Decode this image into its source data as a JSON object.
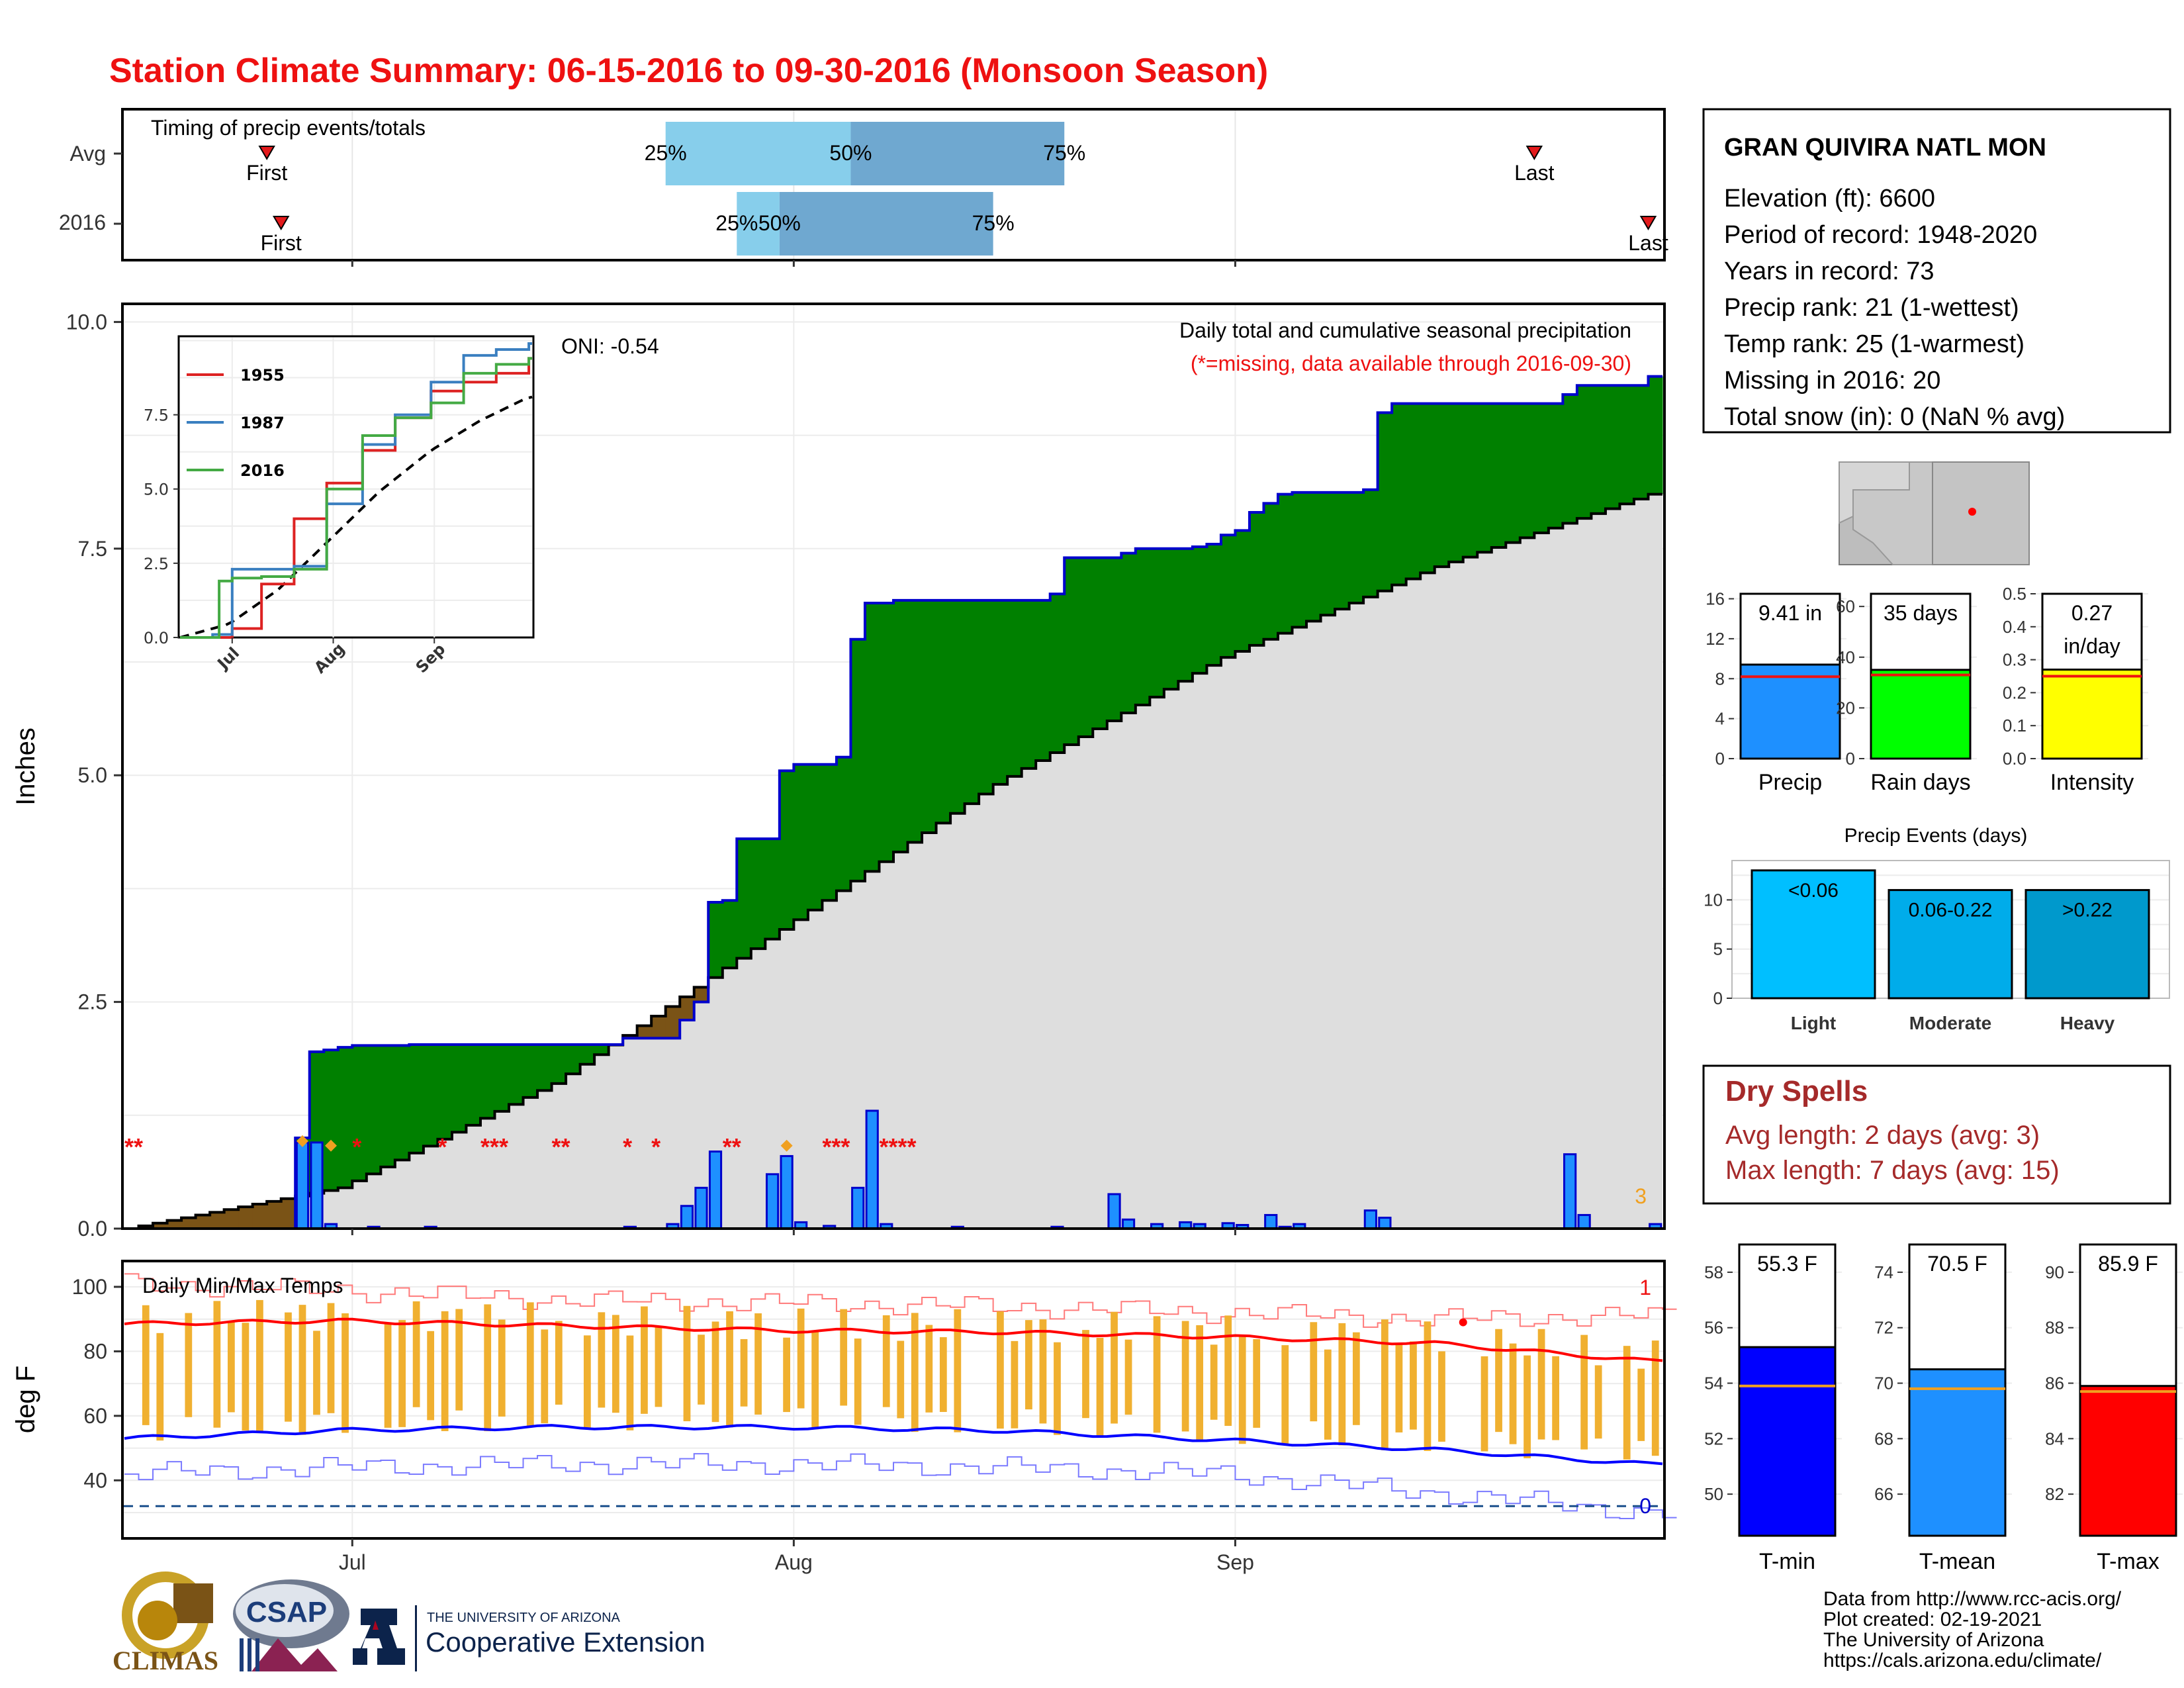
{
  "title": "Station Climate Summary: 06-15-2016 to 09-30-2016 (Monsoon Season)",
  "colors": {
    "title": "#ee1111",
    "green": "#008000",
    "brown": "#7a5316",
    "bar_blue": "#1e90ff",
    "outline_blue": "#0000cc",
    "gray_fill": "#dedede",
    "light_blue": "#87ceeb",
    "mid_blue": "#6fa8d0",
    "dry_red": "#a52a2a",
    "orange": "#f0a020",
    "red": "#ff0000"
  },
  "timing": {
    "label": "Timing of precip events/totals",
    "rows": [
      "Avg",
      "2016"
    ],
    "avg": {
      "p25_label": "25%",
      "p50_label": "50%",
      "p75_label": "75%",
      "first_label": "First",
      "last_label": "Last",
      "first": "06-25",
      "p25": "07-23",
      "p50": "08-05",
      "p75": "08-20",
      "last": "09-22"
    },
    "y2016": {
      "p25_label": "25%",
      "p50_label": "50%",
      "p75_label": "75%",
      "first_label": "First",
      "last_label": "Last",
      "first": "06-26",
      "p25": "07-28",
      "p50": "07-31",
      "p75": "08-15",
      "last": "09-30"
    }
  },
  "precip_panel": {
    "ylabel": "Inches",
    "yticks": [
      "0.0",
      "2.5",
      "5.0",
      "7.5",
      "10.0"
    ],
    "ylim": [
      0,
      10.2
    ],
    "oni_label": "ONI: -0.54",
    "caption1": "Daily total and cumulative seasonal precipitation",
    "caption2": "(*=missing, data available through 2016-09-30)",
    "corner_count": "3",
    "missing_marks": [
      {
        "date": "06-15",
        "text": "**"
      },
      {
        "date": "07-01",
        "text": "*"
      },
      {
        "date": "07-07",
        "text": "*"
      },
      {
        "date": "07-10",
        "text": "***"
      },
      {
        "date": "07-15",
        "text": "**"
      },
      {
        "date": "07-20",
        "text": "*"
      },
      {
        "date": "07-22",
        "text": "*"
      },
      {
        "date": "07-27",
        "text": "**"
      },
      {
        "date": "08-03",
        "text": "***"
      },
      {
        "date": "08-07",
        "text": "****"
      }
    ]
  },
  "inset": {
    "yticks": [
      "0.0",
      "2.5",
      "5.0",
      "7.5"
    ],
    "xticks": [
      "Jul",
      "Aug",
      "Sep"
    ],
    "legend": [
      {
        "label": "1955",
        "color": "#dd2222"
      },
      {
        "label": "1987",
        "color": "#3a7fc0"
      },
      {
        "label": "2016",
        "color": "#44aa44"
      }
    ]
  },
  "temp_panel": {
    "ylabel": "deg F",
    "label": "Daily Min/Max Temps",
    "yticks": [
      "40",
      "60",
      "80",
      "100"
    ],
    "ylim": [
      22,
      108
    ],
    "corner_top": "1",
    "corner_bottom": "0",
    "freeze_line": 32
  },
  "x_axis": {
    "ticks": [
      "Jul",
      "Aug",
      "Sep"
    ]
  },
  "station": {
    "name": "GRAN QUIVIRA NATL MON",
    "lines": [
      "Elevation (ft): 6600",
      "Period of record: 1948-2020",
      "Years in record: 73",
      "Precip rank: 21 (1-wettest)",
      "Temp rank: 25 (1-warmest)",
      "Missing in 2016: 20",
      "Total snow (in): 0 (NaN % avg)"
    ]
  },
  "summary_bars": [
    {
      "name": "Precip",
      "value_label": "9.41 in",
      "value": 9.41,
      "avg": 8.2,
      "ticks": [
        "0",
        "4",
        "8",
        "12",
        "16"
      ],
      "max": 16.5,
      "color": "#1e90ff"
    },
    {
      "name": "Rain days",
      "value_label": "35 days",
      "value": 35,
      "avg": 33,
      "ticks": [
        "0",
        "20",
        "40",
        "60"
      ],
      "max": 65,
      "color": "#00ff00"
    },
    {
      "name": "Intensity",
      "value_label": "0.27 in/day",
      "value": 0.27,
      "avg": 0.25,
      "ticks": [
        "0.0",
        "0.1",
        "0.2",
        "0.3",
        "0.4",
        "0.5"
      ],
      "max": 0.5,
      "color": "#ffff00"
    }
  ],
  "events": {
    "title": "Precip Events (days)",
    "ticks": [
      "0",
      "5",
      "10"
    ],
    "bars": [
      {
        "name": "Light",
        "label": "<0.06",
        "value": 13,
        "color": "#00bfff"
      },
      {
        "name": "Moderate",
        "label": "0.06-0.22",
        "value": 11,
        "color": "#00acea"
      },
      {
        "name": "Heavy",
        "label": ">0.22",
        "value": 11,
        "color": "#0099cc"
      }
    ]
  },
  "dry_spells": {
    "title": "Dry Spells",
    "avg_line": "Avg length: 2 days (avg: 3)",
    "max_line": "Max length: 7 days (avg: 15)"
  },
  "temp_bars": [
    {
      "name": "T-min",
      "value_label": "55.3 F",
      "value": 55.3,
      "avg": 53.9,
      "ticks": [
        "50",
        "52",
        "54",
        "56",
        "58"
      ],
      "min": 48.5,
      "max": 59,
      "color": "#0000ff"
    },
    {
      "name": "T-mean",
      "value_label": "70.5 F",
      "value": 70.5,
      "avg": 69.8,
      "ticks": [
        "66",
        "68",
        "70",
        "72",
        "74"
      ],
      "min": 64.5,
      "max": 75,
      "color": "#1e90ff"
    },
    {
      "name": "T-max",
      "value_label": "85.9 F",
      "value": 85.9,
      "avg": 85.7,
      "ticks": [
        "82",
        "84",
        "86",
        "88",
        "90"
      ],
      "min": 80.5,
      "max": 91,
      "color": "#ff0000"
    }
  ],
  "footer": {
    "lines": [
      "Data from http://www.rcc-acis.org/",
      "Plot created: 02-19-2021",
      "The University of Arizona",
      "https://cals.arizona.edu/climate/"
    ]
  },
  "logos": {
    "climas": "CLIMAS",
    "csap": "CSAP",
    "ua_small": "THE UNIVERSITY OF ARIZONA",
    "ua_big": "Cooperative Extension"
  },
  "chart_data": [
    {
      "type": "area",
      "title": "Daily total and cumulative seasonal precipitation",
      "ylabel": "Inches",
      "ylim": [
        0,
        10.2
      ],
      "x_range": [
        "2016-06-15",
        "2016-09-30"
      ],
      "series": [
        {
          "name": "2016 cumulative",
          "x": [
            "06-15",
            "06-27",
            "06-28",
            "06-29",
            "06-30",
            "07-01",
            "07-05",
            "07-20",
            "07-24",
            "07-25",
            "07-26",
            "07-27",
            "07-28",
            "07-31",
            "08-01",
            "08-04",
            "08-05",
            "08-06",
            "08-07",
            "08-08",
            "08-19",
            "08-20",
            "08-24",
            "08-25",
            "08-29",
            "08-30",
            "08-31",
            "09-01",
            "09-02",
            "09-03",
            "09-04",
            "09-05",
            "09-10",
            "09-11",
            "09-12",
            "09-24",
            "09-25",
            "09-30"
          ],
          "values": [
            0,
            1.0,
            1.95,
            1.97,
            2.0,
            2.02,
            2.03,
            2.1,
            2.3,
            2.5,
            3.6,
            3.62,
            4.3,
            5.05,
            5.12,
            5.2,
            6.5,
            6.9,
            6.9,
            6.93,
            7.0,
            7.4,
            7.45,
            7.5,
            7.52,
            7.55,
            7.65,
            7.7,
            7.9,
            8.0,
            8.1,
            8.12,
            8.15,
            9.0,
            9.1,
            9.2,
            9.3,
            9.4
          ]
        },
        {
          "name": "Avg cumulative",
          "x": [
            "06-15",
            "06-30",
            "07-15",
            "07-31",
            "08-15",
            "08-31",
            "09-15",
            "09-30"
          ],
          "values": [
            0,
            0.45,
            1.6,
            3.3,
            4.9,
            6.3,
            7.3,
            8.1
          ]
        },
        {
          "name": "2016 daily",
          "x": [
            "06-27",
            "06-28",
            "06-29",
            "07-02",
            "07-06",
            "07-20",
            "07-23",
            "07-24",
            "07-25",
            "07-26",
            "07-30",
            "07-31",
            "08-01",
            "08-03",
            "08-05",
            "08-06",
            "08-07",
            "08-12",
            "08-19",
            "08-23",
            "08-24",
            "08-26",
            "08-28",
            "08-29",
            "08-31",
            "09-01",
            "09-03",
            "09-04",
            "09-05",
            "09-10",
            "09-11",
            "09-24",
            "09-25",
            "09-30"
          ],
          "values": [
            0.95,
            0.95,
            0.05,
            0.02,
            0.02,
            0.02,
            0.05,
            0.25,
            0.45,
            0.85,
            0.6,
            0.8,
            0.07,
            0.03,
            0.45,
            1.3,
            0.05,
            0.02,
            0.02,
            0.38,
            0.1,
            0.05,
            0.07,
            0.05,
            0.06,
            0.04,
            0.15,
            0.02,
            0.05,
            0.2,
            0.12,
            0.82,
            0.15,
            0.05
          ]
        }
      ]
    },
    {
      "type": "line",
      "title": "",
      "x_range": [
        "06-15",
        "09-30"
      ],
      "series": [
        {
          "name": "1955",
          "x": [
            "06-15",
            "07-01",
            "07-10",
            "07-20",
            "07-30",
            "08-10",
            "08-20",
            "08-31",
            "09-10",
            "09-20",
            "09-30"
          ],
          "values": [
            0,
            0.3,
            1.8,
            4.0,
            5.2,
            6.3,
            7.4,
            8.3,
            8.6,
            8.9,
            9.4
          ]
        },
        {
          "name": "1987",
          "x": [
            "06-15",
            "06-25",
            "07-01",
            "07-10",
            "07-20",
            "07-30",
            "08-10",
            "08-20",
            "08-31",
            "09-10",
            "09-20",
            "09-30"
          ],
          "values": [
            0,
            0.1,
            2.3,
            2.3,
            2.4,
            4.5,
            6.5,
            7.5,
            8.6,
            9.5,
            9.7,
            9.9
          ]
        },
        {
          "name": "2016",
          "x": [
            "06-15",
            "06-27",
            "07-01",
            "07-10",
            "07-20",
            "07-30",
            "08-10",
            "08-20",
            "08-31",
            "09-10",
            "09-20",
            "09-30"
          ],
          "values": [
            0,
            1.9,
            2.0,
            2.05,
            2.3,
            5.0,
            6.8,
            7.4,
            7.9,
            8.9,
            9.2,
            9.4
          ]
        }
      ]
    },
    {
      "type": "line",
      "title": "Daily Min/Max Temps",
      "ylabel": "deg F",
      "ylim": [
        22,
        108
      ],
      "x_range": [
        "06-15",
        "09-30"
      ],
      "series": [
        {
          "name": "Avg max",
          "x": [
            "06-15",
            "06-30",
            "07-15",
            "07-31",
            "08-15",
            "08-31",
            "09-15",
            "09-30"
          ],
          "values": [
            88.5,
            89.5,
            88,
            86.5,
            86,
            84.5,
            82.5,
            77
          ]
        },
        {
          "name": "Avg min",
          "x": [
            "06-15",
            "06-30",
            "07-15",
            "07-31",
            "08-15",
            "08-31",
            "09-15",
            "09-30"
          ],
          "values": [
            53,
            55.5,
            56.5,
            56.5,
            55.5,
            52.5,
            49.5,
            45
          ]
        },
        {
          "name": "Record max",
          "x": [
            "06-15",
            "06-30",
            "07-15",
            "07-31",
            "08-15",
            "08-31",
            "09-15",
            "09-30"
          ],
          "values": [
            101,
            99,
            96,
            95,
            94,
            92,
            90,
            91
          ]
        },
        {
          "name": "Record min",
          "x": [
            "06-15",
            "06-30",
            "07-15",
            "07-31",
            "08-15",
            "08-31",
            "09-15",
            "09-30"
          ],
          "values": [
            42,
            44,
            45,
            45,
            44,
            42,
            36,
            30
          ]
        }
      ]
    }
  ]
}
